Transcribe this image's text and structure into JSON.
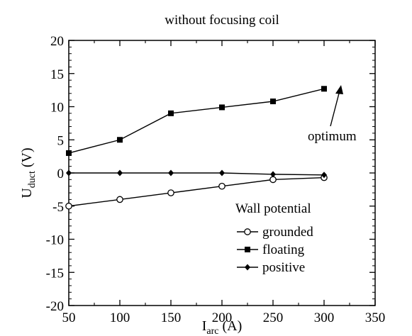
{
  "chart_data": {
    "type": "line",
    "title": "without focusing coil",
    "xlabel_main": "I",
    "xlabel_sub": "arc",
    "xlabel_unit": " (A)",
    "ylabel_main": "U",
    "ylabel_sub": "duct",
    "ylabel_unit": " (V)",
    "xlim": [
      50,
      350
    ],
    "ylim": [
      -20,
      20
    ],
    "xticks": [
      50,
      100,
      150,
      200,
      250,
      300,
      350
    ],
    "yticks": [
      -20,
      -15,
      -10,
      -5,
      0,
      5,
      10,
      15,
      20
    ],
    "x": [
      50,
      100,
      150,
      200,
      250,
      300
    ],
    "legend_title": "Wall potential",
    "legend_position": "bottom-right",
    "series": [
      {
        "name": "grounded",
        "marker": "open-circle",
        "values": [
          -5,
          -4,
          -3,
          -2,
          -1,
          -0.7
        ]
      },
      {
        "name": "floating",
        "marker": "filled-square",
        "values": [
          3,
          5,
          9,
          9.9,
          10.8,
          12.7
        ]
      },
      {
        "name": "positive",
        "marker": "filled-diamond",
        "values": [
          0,
          0,
          0,
          0,
          -0.2,
          -0.3
        ]
      }
    ],
    "annotations": [
      {
        "text": "optimum",
        "x": 300,
        "y": 12.7
      }
    ]
  }
}
